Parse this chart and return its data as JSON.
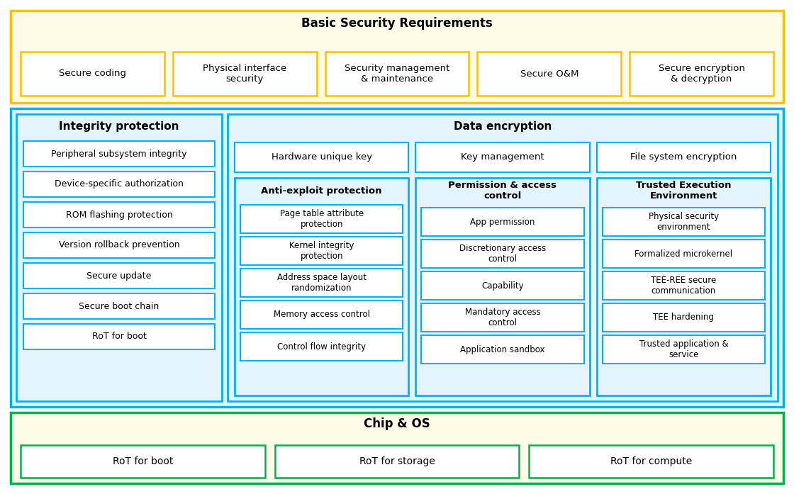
{
  "bg_color": "#ffffff",
  "sections": {
    "basic_security": {
      "title": "Basic Security Requirements",
      "border_color": "#FFC000",
      "fill_color": "#FFFDE7",
      "item_border": "#FFC000",
      "items": [
        "Secure coding",
        "Physical interface\nsecurity",
        "Security management\n& maintenance",
        "Secure O&M",
        "Secure encryption\n& decryption"
      ]
    },
    "integrity": {
      "title": "Integrity protection",
      "border_color": "#00B0F0",
      "fill_color": "#E3F4FD",
      "items": [
        "Peripheral subsystem integrity",
        "Device-specific authorization",
        "ROM flashing protection",
        "Version rollback prevention",
        "Secure update",
        "Secure boot chain",
        "RoT for boot"
      ]
    },
    "data_encryption": {
      "title": "Data encryption",
      "border_color": "#00B0F0",
      "fill_color": "#E3F4FD",
      "top_items": [
        "Hardware unique key",
        "Key management",
        "File system encryption"
      ]
    },
    "anti_exploit": {
      "title": "Anti-exploit protection",
      "border_color": "#00B0F0",
      "fill_color": "#E3F4FD",
      "items": [
        "Page table attribute\nprotection",
        "Kernel integrity\nprotection",
        "Address space layout\nrandomization",
        "Memory access control",
        "Control flow integrity"
      ]
    },
    "permission": {
      "title": "Permission & access\ncontrol",
      "border_color": "#00B0F0",
      "fill_color": "#E3F4FD",
      "items": [
        "App permission",
        "Discretionary access\ncontrol",
        "Capability",
        "Mandatory access\ncontrol",
        "Application sandbox"
      ]
    },
    "tee": {
      "title": "Trusted Execution\nEnvironment",
      "border_color": "#00B0F0",
      "fill_color": "#E3F4FD",
      "items": [
        "Physical security\nenvironment",
        "Formalized microkernel",
        "TEE-REE secure\ncommunication",
        "TEE hardening",
        "Trusted application &\nservice"
      ]
    },
    "chip_os": {
      "title": "Chip & OS",
      "border_color": "#00B050",
      "fill_color": "#FFFDE7",
      "item_border": "#00B050",
      "items": [
        "RoT for boot",
        "RoT for storage",
        "RoT for compute"
      ]
    }
  }
}
